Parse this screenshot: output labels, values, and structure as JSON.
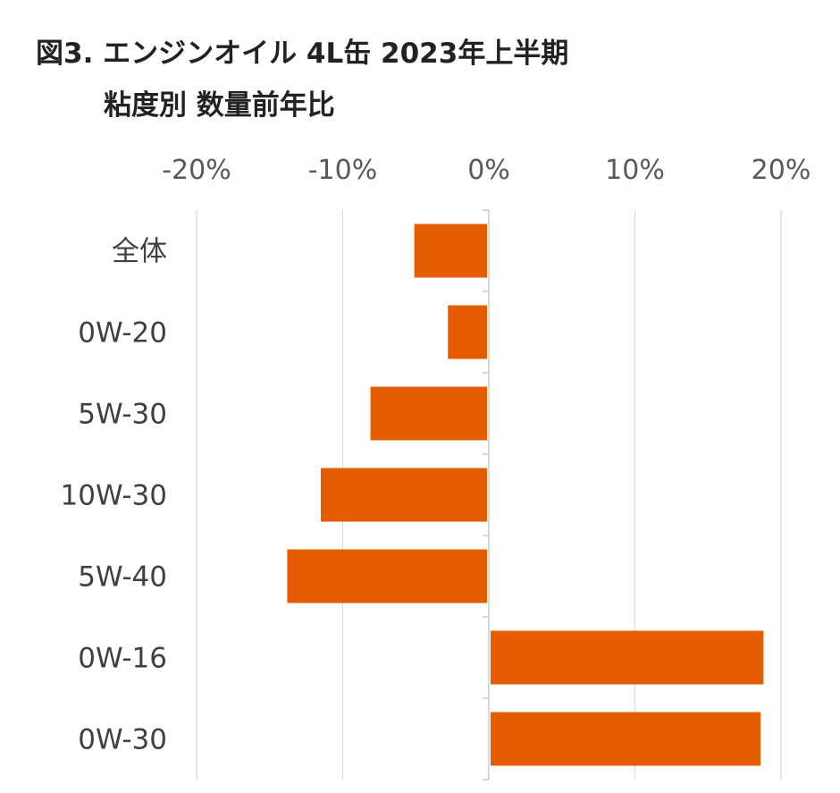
{
  "title": {
    "line1": "図3. エンジンオイル 4L缶 2023年上半期",
    "line2": "粘度別 数量前年比"
  },
  "colors": {
    "bar": "#E65C00",
    "grid": "#D9D9D9",
    "axis": "#BFBFBF"
  },
  "chart_data": {
    "type": "bar",
    "orientation": "horizontal",
    "categories": [
      "全体",
      "0W-20",
      "5W-30",
      "10W-30",
      "5W-40",
      "0W-16",
      "0W-30"
    ],
    "values": [
      -5.1,
      -2.8,
      -8.1,
      -11.5,
      -13.8,
      18.8,
      18.6
    ],
    "xlim": [
      -20,
      20
    ],
    "xticks": [
      -20,
      -10,
      0,
      10,
      20
    ],
    "xtick_labels": [
      "-20%",
      "-10%",
      "0%",
      "10%",
      "20%"
    ],
    "xaxis_position": "top",
    "grid": true,
    "legend": "none"
  }
}
